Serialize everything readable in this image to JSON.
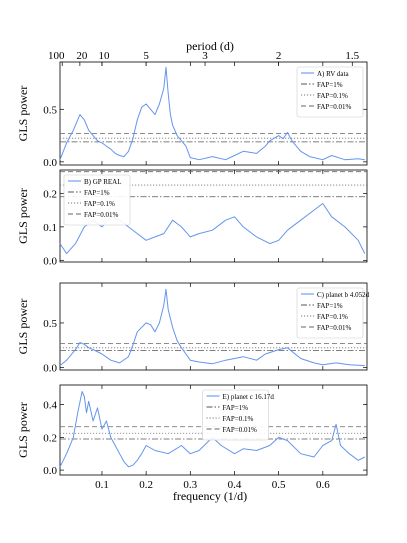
{
  "figure": {
    "top_axis_label": "period (d)",
    "bottom_axis_label": "frequency (1/d)",
    "top_ticks": [
      {
        "period": 100,
        "label": "100"
      },
      {
        "period": 20,
        "label": "20"
      },
      {
        "period": 10,
        "label": "10"
      },
      {
        "period": 5,
        "label": "5"
      },
      {
        "period": 3,
        "label": "3"
      },
      {
        "period": 2,
        "label": "2"
      },
      {
        "period": 1.5,
        "label": "1.5"
      }
    ],
    "bottom_ticks": [
      {
        "value": 0.1,
        "label": "0.1"
      },
      {
        "value": 0.2,
        "label": "0.2"
      },
      {
        "value": 0.3,
        "label": "0.3"
      },
      {
        "value": 0.4,
        "label": "0.4"
      },
      {
        "value": 0.5,
        "label": "0.5"
      },
      {
        "value": 0.6,
        "label": "0.6"
      }
    ]
  },
  "chart_data": [
    {
      "type": "line",
      "series": [
        {
          "name": "A) RV data",
          "color": "#6495ED",
          "x": [
            0.005,
            0.02,
            0.035,
            0.05,
            0.06,
            0.07,
            0.08,
            0.09,
            0.1,
            0.11,
            0.12,
            0.13,
            0.14,
            0.15,
            0.16,
            0.17,
            0.18,
            0.19,
            0.2,
            0.21,
            0.22,
            0.23,
            0.24,
            0.245,
            0.25,
            0.255,
            0.26,
            0.27,
            0.28,
            0.29,
            0.3,
            0.32,
            0.35,
            0.38,
            0.4,
            0.42,
            0.45,
            0.47,
            0.48,
            0.5,
            0.51,
            0.52,
            0.53,
            0.55,
            0.57,
            0.6,
            0.62,
            0.65,
            0.68,
            0.695
          ],
          "y": [
            0.02,
            0.18,
            0.3,
            0.45,
            0.4,
            0.3,
            0.25,
            0.2,
            0.18,
            0.15,
            0.12,
            0.08,
            0.06,
            0.05,
            0.1,
            0.22,
            0.4,
            0.52,
            0.55,
            0.5,
            0.45,
            0.55,
            0.7,
            0.9,
            0.65,
            0.45,
            0.35,
            0.25,
            0.2,
            0.15,
            0.04,
            0.02,
            0.05,
            0.02,
            0.06,
            0.1,
            0.08,
            0.15,
            0.2,
            0.25,
            0.22,
            0.28,
            0.2,
            0.1,
            0.05,
            0.02,
            0.06,
            0.02,
            0.03,
            0.02
          ]
        }
      ],
      "fap": [
        {
          "name": "FAP=1%",
          "value": 0.19,
          "dash": "dashdot"
        },
        {
          "name": "FAP=0.1%",
          "value": 0.225,
          "dash": "dotted"
        },
        {
          "name": "FAP=0.01%",
          "value": 0.27,
          "dash": "dashed"
        }
      ],
      "ylim": [
        -0.03,
        0.95
      ],
      "yticks": [
        {
          "value": 0,
          "label": "0.0"
        },
        {
          "value": 0.5,
          "label": "0.5"
        }
      ],
      "xlim": [
        0.005,
        0.7
      ],
      "ylabel": "GLS power",
      "legend": {
        "position": "top-right",
        "title": "A) RV data",
        "entries": [
          "FAP=1%",
          "FAP=0.1%",
          "FAP=0.01%"
        ]
      }
    },
    {
      "type": "line",
      "series": [
        {
          "name": "B) GP REAL",
          "color": "#6495ED",
          "x": [
            0.005,
            0.02,
            0.04,
            0.06,
            0.08,
            0.1,
            0.12,
            0.14,
            0.16,
            0.18,
            0.2,
            0.22,
            0.24,
            0.26,
            0.28,
            0.3,
            0.32,
            0.35,
            0.38,
            0.4,
            0.42,
            0.45,
            0.48,
            0.5,
            0.52,
            0.55,
            0.58,
            0.6,
            0.62,
            0.65,
            0.68,
            0.695
          ],
          "y": [
            0.05,
            0.02,
            0.05,
            0.1,
            0.12,
            0.1,
            0.13,
            0.12,
            0.1,
            0.08,
            0.06,
            0.07,
            0.08,
            0.12,
            0.1,
            0.07,
            0.08,
            0.09,
            0.12,
            0.13,
            0.1,
            0.07,
            0.05,
            0.06,
            0.09,
            0.12,
            0.15,
            0.17,
            0.13,
            0.1,
            0.06,
            0.02
          ]
        }
      ],
      "fap": [
        {
          "name": "FAP=1%",
          "value": 0.19,
          "dash": "dashdot"
        },
        {
          "name": "FAP=0.1%",
          "value": 0.225,
          "dash": "dotted"
        },
        {
          "name": "FAP=0.01%",
          "value": 0.265,
          "dash": "dashed"
        }
      ],
      "ylim": [
        -0.005,
        0.27
      ],
      "yticks": [
        {
          "value": 0,
          "label": "0.0"
        },
        {
          "value": 0.1,
          "label": "0.1"
        },
        {
          "value": 0.2,
          "label": "0.2"
        }
      ],
      "xlim": [
        0.005,
        0.7
      ],
      "ylabel": "GLS power",
      "legend": {
        "position": "top-left",
        "title": "B) GP REAL",
        "entries": [
          "FAP=1%",
          "FAP=0.1%",
          "FAP=0.01%"
        ]
      }
    },
    {
      "type": "line",
      "series": [
        {
          "name": "C) planet b 4.052d",
          "color": "#6495ED",
          "x": [
            0.005,
            0.02,
            0.04,
            0.05,
            0.06,
            0.07,
            0.08,
            0.1,
            0.12,
            0.14,
            0.16,
            0.17,
            0.18,
            0.2,
            0.21,
            0.22,
            0.23,
            0.24,
            0.245,
            0.25,
            0.26,
            0.27,
            0.28,
            0.29,
            0.3,
            0.32,
            0.35,
            0.38,
            0.4,
            0.42,
            0.45,
            0.47,
            0.5,
            0.52,
            0.55,
            0.58,
            0.6,
            0.63,
            0.66,
            0.695
          ],
          "y": [
            0.02,
            0.08,
            0.2,
            0.28,
            0.26,
            0.22,
            0.2,
            0.15,
            0.08,
            0.05,
            0.12,
            0.25,
            0.4,
            0.5,
            0.48,
            0.4,
            0.5,
            0.7,
            0.88,
            0.65,
            0.45,
            0.3,
            0.22,
            0.15,
            0.08,
            0.06,
            0.04,
            0.08,
            0.1,
            0.12,
            0.08,
            0.15,
            0.2,
            0.22,
            0.1,
            0.05,
            0.03,
            0.05,
            0.03,
            0.02
          ]
        }
      ],
      "fap": [
        {
          "name": "FAP=1%",
          "value": 0.19,
          "dash": "dashdot"
        },
        {
          "name": "FAP=0.1%",
          "value": 0.22,
          "dash": "dotted"
        },
        {
          "name": "FAP=0.01%",
          "value": 0.27,
          "dash": "dashed"
        }
      ],
      "ylim": [
        -0.03,
        0.95
      ],
      "yticks": [
        {
          "value": 0,
          "label": "0.0"
        },
        {
          "value": 0.5,
          "label": "0.5"
        }
      ],
      "xlim": [
        0.005,
        0.7
      ],
      "ylabel": "GLS power",
      "legend": {
        "position": "top-right",
        "title": "C) planet b 4.052d",
        "entries": [
          "FAP=1%",
          "FAP=0.1%",
          "FAP=0.01%"
        ]
      }
    },
    {
      "type": "line",
      "series": [
        {
          "name": "E) planet c 16.17d",
          "color": "#6495ED",
          "x": [
            0.005,
            0.02,
            0.035,
            0.045,
            0.055,
            0.06,
            0.065,
            0.07,
            0.08,
            0.09,
            0.1,
            0.11,
            0.12,
            0.13,
            0.14,
            0.15,
            0.16,
            0.17,
            0.18,
            0.19,
            0.2,
            0.22,
            0.25,
            0.28,
            0.3,
            0.32,
            0.35,
            0.37,
            0.4,
            0.42,
            0.45,
            0.48,
            0.5,
            0.52,
            0.55,
            0.58,
            0.6,
            0.62,
            0.63,
            0.64,
            0.66,
            0.68,
            0.695
          ],
          "y": [
            0.02,
            0.1,
            0.2,
            0.35,
            0.48,
            0.45,
            0.35,
            0.42,
            0.3,
            0.38,
            0.25,
            0.3,
            0.2,
            0.15,
            0.1,
            0.05,
            0.02,
            0.03,
            0.06,
            0.1,
            0.15,
            0.12,
            0.1,
            0.15,
            0.1,
            0.12,
            0.2,
            0.15,
            0.1,
            0.13,
            0.12,
            0.15,
            0.2,
            0.18,
            0.1,
            0.08,
            0.15,
            0.18,
            0.28,
            0.15,
            0.1,
            0.06,
            0.08
          ]
        }
      ],
      "fap": [
        {
          "name": "FAP=1%",
          "value": 0.19,
          "dash": "dashdot"
        },
        {
          "name": "FAP=0.1%",
          "value": 0.225,
          "dash": "dotted"
        },
        {
          "name": "FAP=0.01%",
          "value": 0.265,
          "dash": "dashed"
        }
      ],
      "ylim": [
        -0.03,
        0.52
      ],
      "yticks": [
        {
          "value": 0,
          "label": "0.0"
        },
        {
          "value": 0.2,
          "label": "0.2"
        },
        {
          "value": 0.4,
          "label": "0.4"
        }
      ],
      "xlim": [
        0.005,
        0.7
      ],
      "ylabel": "GLS power",
      "legend": {
        "position": "top-center",
        "title": "E) planet c 16.17d",
        "entries": [
          "FAP=1%",
          "FAP=0.1%",
          "FAP=0.01%"
        ]
      }
    }
  ]
}
